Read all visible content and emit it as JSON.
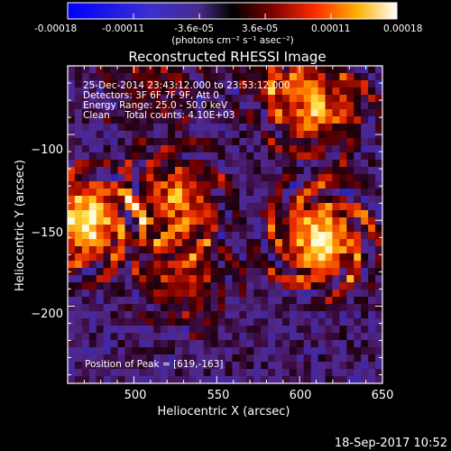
{
  "colorbar": {
    "tick_labels": [
      "-0.00018",
      "-0.00011",
      "-3.6e-05",
      "3.6e-05",
      "0.00011",
      "0.00018"
    ],
    "unit_label": "(photons cm⁻² s⁻¹ asec⁻²)",
    "min": -0.00018,
    "max": 0.00018
  },
  "image": {
    "title": "Reconstructed RHESSI Image",
    "info_lines": [
      "25-Dec-2014 23:43:12.000 to 23:53:12.000",
      "Detectors: 3F 6F 7F 9F, Att 0",
      "Energy Range: 25.0 - 50.0 keV",
      "Clean     Total counts: 4.10E+03"
    ],
    "peak_text": "Position of Peak = [619,-163]"
  },
  "axes": {
    "xlabel": "Heliocentric X (arcsec)",
    "ylabel": "Heliocentric Y (arcsec)",
    "xlim": [
      460,
      650
    ],
    "ylim": [
      -245,
      -60
    ],
    "xticks": [
      500,
      550,
      600,
      650
    ],
    "yticks": [
      -100,
      -150,
      -200
    ],
    "xtick_labels": [
      "500",
      "550",
      "600",
      "650"
    ],
    "ytick_labels": [
      "−100",
      "−150",
      "−200"
    ]
  },
  "timestamp": "18-Sep-2017 10:52",
  "sources": [
    {
      "x": 470,
      "y": -150,
      "strength": 1.0
    },
    {
      "x": 612,
      "y": -160,
      "strength": 1.0
    },
    {
      "x": 612,
      "y": -85,
      "strength": 0.65
    },
    {
      "x": 525,
      "y": -138,
      "strength": 0.7
    },
    {
      "x": 530,
      "y": -183,
      "strength": 0.5
    },
    {
      "x": 590,
      "y": -65,
      "strength": 0.4
    },
    {
      "x": 510,
      "y": -68,
      "strength": 0.35
    }
  ]
}
